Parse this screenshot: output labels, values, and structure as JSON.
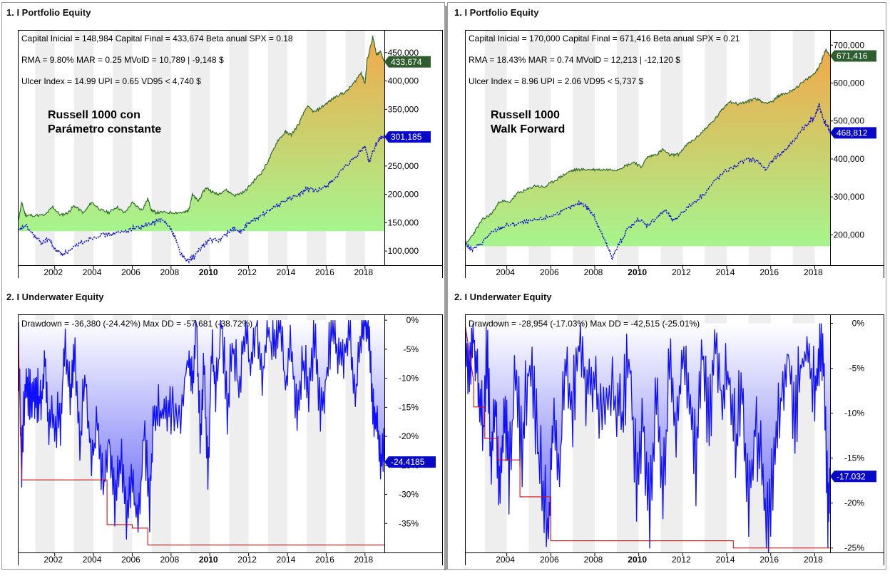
{
  "panels": {
    "left": {
      "equity_title": "1. I Portfolio Equity",
      "underwater_title": "2. I Underwater Equity"
    },
    "right": {
      "equity_title": "1. I Portfolio Equity",
      "underwater_title": "2. I Underwater Equity"
    }
  },
  "colors": {
    "fill_top": "#f2a84a",
    "fill_bottom": "#a6f58e",
    "equity_line": "#2f6b2f",
    "benchmark_line": "#1010d8",
    "drawdown_line": "#1010ff",
    "drawdown_fill_top": "#ffffff",
    "drawdown_fill_bottom": "#5a5af5",
    "maxdd_line": "#d01010",
    "tag_blue": "#0808c8",
    "tag_green": "#2e5e2e"
  },
  "chart_data": [
    {
      "id": "left-equity",
      "type": "area",
      "stats_lines": [
        "Capital Inicial = 148,984  Capital Final = 433,674  Beta anual SPX = 0.18",
        "RMA = 9.80%   MAR = 0.25   MVolD = 10,789 | -9,148 $",
        "Ulcer Index = 14.99   UPI = 0.65   VD95 < 4,740 $"
      ],
      "annotation": [
        "Russell 1000 con",
        "Parámetro constante"
      ],
      "xlim": [
        2000.1,
        2019.0
      ],
      "ylim": [
        75000,
        490000
      ],
      "x_ticks": [
        2002,
        2004,
        2006,
        2008,
        2010,
        2012,
        2014,
        2016,
        2018
      ],
      "x_tick_labels": [
        "2002",
        "2004",
        "2006",
        "2008",
        "2010",
        "2012",
        "2014",
        "2016",
        "2018"
      ],
      "y_ticks": [
        100000,
        150000,
        200000,
        250000,
        300000,
        350000,
        400000,
        450000
      ],
      "y_tick_labels": [
        "100,000",
        "150,000",
        "200,000",
        "250,000",
        "300,000",
        "350,000",
        "400,000",
        "450,000"
      ],
      "fill_floor": 135000,
      "series": [
        {
          "name": "Equity",
          "x": [
            2000.1,
            2000.3,
            2000.5,
            2000.8,
            2001.5,
            2001.9,
            2002.3,
            2002.7,
            2003.0,
            2003.5,
            2003.9,
            2004.4,
            2004.8,
            2005.2,
            2005.6,
            2006.0,
            2006.5,
            2006.8,
            2007.0,
            2007.2,
            2007.6,
            2008.2,
            2008.7,
            2008.9,
            2009.1,
            2009.4,
            2009.8,
            2010.1,
            2010.4,
            2010.8,
            2011.3,
            2011.8,
            2012.3,
            2012.7,
            2013.1,
            2013.5,
            2013.9,
            2014.2,
            2014.6,
            2015.0,
            2015.4,
            2015.8,
            2016.2,
            2016.6,
            2017.0,
            2017.4,
            2017.8,
            2018.0,
            2018.1,
            2018.4,
            2018.6,
            2018.8,
            2019.0
          ],
          "y": [
            150000,
            185000,
            163000,
            163000,
            163000,
            178000,
            163000,
            168000,
            180000,
            167000,
            186000,
            172000,
            168000,
            178000,
            167000,
            185000,
            172000,
            192000,
            172000,
            168000,
            168000,
            168000,
            168000,
            172000,
            199000,
            188000,
            212000,
            205000,
            200000,
            208000,
            198000,
            205000,
            225000,
            240000,
            265000,
            295000,
            310000,
            305000,
            325000,
            355000,
            345000,
            355000,
            365000,
            375000,
            380000,
            395000,
            415000,
            395000,
            435000,
            478000,
            445000,
            452000,
            434000
          ]
        },
        {
          "name": "Benchmark",
          "x": [
            2000.1,
            2000.5,
            2000.9,
            2001.3,
            2001.7,
            2002.0,
            2002.4,
            2002.8,
            2003.2,
            2003.8,
            2004.3,
            2004.9,
            2005.5,
            2006.0,
            2006.5,
            2007.0,
            2007.4,
            2007.8,
            2008.2,
            2008.5,
            2008.8,
            2009.2,
            2009.6,
            2010.0,
            2010.4,
            2010.8,
            2011.2,
            2011.6,
            2012.0,
            2012.5,
            2013.0,
            2013.5,
            2014.0,
            2014.5,
            2015.0,
            2015.5,
            2016.0,
            2016.5,
            2017.0,
            2017.5,
            2018.0,
            2018.2,
            2018.5,
            2018.8,
            2019.0
          ],
          "y": [
            135000,
            145000,
            128000,
            115000,
            122000,
            103000,
            95000,
            100000,
            112000,
            122000,
            128000,
            130000,
            133000,
            140000,
            143000,
            148000,
            155000,
            150000,
            125000,
            95000,
            82000,
            90000,
            108000,
            120000,
            118000,
            128000,
            140000,
            132000,
            150000,
            158000,
            172000,
            180000,
            192000,
            197000,
            210000,
            205000,
            215000,
            230000,
            248000,
            265000,
            285000,
            258000,
            282000,
            300000,
            301000
          ]
        },
        {
          "name": "Drawdown",
          "x": [],
          "y": []
        }
      ],
      "last_values": {
        "equity_tag": "433,674",
        "benchmark_tag": "301,185"
      },
      "last_values_num": {
        "equity": 433674,
        "benchmark": 301185
      }
    },
    {
      "id": "right-equity",
      "type": "area",
      "stats_lines": [
        "Capital Inicial = 170,000  Capital Final = 671,416  Beta anual SPX = 0.21",
        "RMA = 18.43%   MAR = 0.74   MVolD = 12,213 | -12,120 $",
        "Ulcer Index = 8.96   UPI = 2.06   VD95 < 5,737 $"
      ],
      "annotation": [
        "Russell 1000",
        "Walk Forward"
      ],
      "xlim": [
        2002.1,
        2018.7
      ],
      "ylim": [
        120000,
        740000
      ],
      "x_ticks": [
        2004,
        2006,
        2008,
        2010,
        2012,
        2014,
        2016,
        2018
      ],
      "x_tick_labels": [
        "2004",
        "2006",
        "2008",
        "2010",
        "2012",
        "2014",
        "2016",
        "2018"
      ],
      "y_ticks": [
        200000,
        300000,
        400000,
        500000,
        600000,
        700000
      ],
      "y_tick_labels": [
        "200,000",
        "300,000",
        "400,000",
        "500,000",
        "600,000",
        "700,000"
      ],
      "fill_floor": 170000,
      "series": [
        {
          "name": "Equity",
          "x": [
            2002.1,
            2002.5,
            2002.9,
            2003.3,
            2003.7,
            2004.1,
            2004.5,
            2004.9,
            2005.3,
            2005.7,
            2006.1,
            2006.5,
            2006.9,
            2007.2,
            2007.6,
            2008.0,
            2008.5,
            2009.0,
            2009.4,
            2009.8,
            2010.1,
            2010.4,
            2010.8,
            2011.1,
            2011.4,
            2011.8,
            2012.2,
            2012.6,
            2013.0,
            2013.4,
            2013.8,
            2014.1,
            2014.5,
            2014.9,
            2015.3,
            2015.7,
            2016.1,
            2016.4,
            2016.8,
            2017.2,
            2017.6,
            2018.0,
            2018.3,
            2018.5,
            2018.7
          ],
          "y": [
            170000,
            205000,
            240000,
            255000,
            290000,
            285000,
            310000,
            318000,
            330000,
            325000,
            340000,
            355000,
            368000,
            372000,
            372000,
            372000,
            372000,
            372000,
            382000,
            392000,
            378000,
            405000,
            412000,
            425000,
            410000,
            412000,
            438000,
            455000,
            478000,
            500000,
            530000,
            552000,
            545000,
            550000,
            560000,
            548000,
            552000,
            568000,
            575000,
            590000,
            608000,
            625000,
            655000,
            690000,
            671000
          ]
        },
        {
          "name": "Benchmark",
          "x": [
            2002.1,
            2002.4,
            2002.8,
            2003.2,
            2003.6,
            2004.0,
            2004.5,
            2005.0,
            2005.5,
            2006.0,
            2006.5,
            2007.0,
            2007.4,
            2007.7,
            2008.0,
            2008.3,
            2008.6,
            2008.8,
            2009.1,
            2009.5,
            2010.0,
            2010.4,
            2010.8,
            2011.2,
            2011.6,
            2012.0,
            2012.5,
            2013.0,
            2013.5,
            2014.0,
            2014.5,
            2015.0,
            2015.4,
            2015.8,
            2016.2,
            2016.6,
            2017.0,
            2017.4,
            2017.8,
            2018.0,
            2018.2,
            2018.4,
            2018.6,
            2018.7
          ],
          "y": [
            180000,
            160000,
            175000,
            200000,
            215000,
            225000,
            230000,
            235000,
            240000,
            250000,
            260000,
            275000,
            285000,
            270000,
            245000,
            205000,
            165000,
            140000,
            175000,
            215000,
            240000,
            225000,
            245000,
            265000,
            235000,
            262000,
            285000,
            310000,
            345000,
            370000,
            385000,
            400000,
            395000,
            370000,
            405000,
            420000,
            445000,
            475000,
            500000,
            510000,
            545000,
            500000,
            485000,
            469000
          ]
        },
        {
          "name": "Drawdown",
          "x": [],
          "y": []
        }
      ],
      "last_values": {
        "equity_tag": "671,416",
        "benchmark_tag": "468,812"
      },
      "last_values_num": {
        "equity": 671416,
        "benchmark": 468812
      }
    },
    {
      "id": "left-underwater",
      "type": "area",
      "stats_line": "Drawdown = -36,380 (-24.42%)     Max DD = -57,681 (-38.72%)",
      "xlim": [
        2000.1,
        2019.0
      ],
      "ylim": [
        -40,
        1
      ],
      "x_ticks": [
        2002,
        2004,
        2006,
        2008,
        2010,
        2012,
        2014,
        2016,
        2018
      ],
      "x_tick_labels": [
        "2002",
        "2004",
        "2006",
        "2008",
        "2010",
        "2012",
        "2014",
        "2016",
        "2018"
      ],
      "y_ticks": [
        0,
        -5,
        -10,
        -15,
        -20,
        -25,
        -30,
        -35
      ],
      "y_tick_labels": [
        "0%",
        "-5%",
        "-10%",
        "-15%",
        "-20%",
        "-25%",
        "-30%",
        "-35%"
      ],
      "series": [
        {
          "name": "Drawdown",
          "x": [
            2000.1,
            2000.3,
            2000.5,
            2000.7,
            2000.9,
            2001.1,
            2001.3,
            2001.5,
            2001.7,
            2002.0,
            2002.3,
            2002.5,
            2002.8,
            2003.0,
            2003.3,
            2003.6,
            2003.9,
            2004.2,
            2004.5,
            2004.8,
            2005.1,
            2005.4,
            2005.7,
            2006.0,
            2006.3,
            2006.6,
            2006.9,
            2007.1,
            2007.4,
            2007.7,
            2008.0,
            2008.5,
            2008.9,
            2009.1,
            2009.3,
            2009.5,
            2009.7,
            2009.9,
            2010.1,
            2010.3,
            2010.6,
            2010.9,
            2011.2,
            2011.5,
            2011.8,
            2012.1,
            2012.4,
            2012.7,
            2013.0,
            2013.3,
            2013.6,
            2013.9,
            2014.2,
            2014.5,
            2014.8,
            2015.1,
            2015.4,
            2015.7,
            2016.0,
            2016.3,
            2016.6,
            2016.9,
            2017.2,
            2017.5,
            2017.8,
            2018.0,
            2018.2,
            2018.4,
            2018.6,
            2018.8,
            2019.0
          ],
          "y": [
            0,
            -25,
            -10,
            -14,
            -14,
            -14,
            -14,
            -8,
            -18,
            -18,
            -18,
            -5,
            -14,
            -6,
            -22,
            -10,
            -25,
            -18,
            -30,
            -20,
            -32,
            -24,
            -35,
            -28,
            -36,
            -20,
            -33,
            -16,
            -16,
            -16,
            -16,
            -16,
            -6,
            -12,
            0,
            -20,
            -8,
            -28,
            -4,
            -14,
            0,
            -16,
            -4,
            -12,
            -2,
            -8,
            0,
            -10,
            -2,
            -6,
            0,
            -12,
            -4,
            -18,
            -6,
            -14,
            -3,
            -18,
            -10,
            -2,
            -6,
            -8,
            0,
            -14,
            -2,
            0,
            -3,
            -17,
            -17,
            -24,
            -24.4
          ]
        },
        {
          "name": "Max DD",
          "x": [
            2000.1,
            2000.3,
            2004.7,
            2004.7,
            2006.0,
            2006.0,
            2006.8,
            2006.8,
            2019.0
          ],
          "y": [
            0,
            -27.5,
            -27.5,
            -35.2,
            -35.2,
            -35.8,
            -35.8,
            -38.7,
            -38.7
          ]
        }
      ],
      "last_value_tag": "-24.4185",
      "last_value_num": -24.4185
    },
    {
      "id": "right-underwater",
      "type": "area",
      "stats_line": "Drawdown = -28,954 (-17.03%)     Max DD = -42,515 (-25.01%)",
      "xlim": [
        2002.1,
        2018.7
      ],
      "ylim": [
        -25.5,
        1
      ],
      "x_ticks": [
        2004,
        2006,
        2008,
        2010,
        2012,
        2014,
        2016,
        2018
      ],
      "x_tick_labels": [
        "2004",
        "2006",
        "2008",
        "2010",
        "2012",
        "2014",
        "2016",
        "2018"
      ],
      "y_ticks": [
        0,
        -5,
        -10,
        -15,
        -20,
        -25
      ],
      "y_tick_labels": [
        "0%",
        "-5%",
        "-10%",
        "-15%",
        "-20%",
        "-25%"
      ],
      "series": [
        {
          "name": "Drawdown",
          "x": [
            2002.1,
            2002.3,
            2002.5,
            2002.7,
            2002.9,
            2003.1,
            2003.3,
            2003.5,
            2003.7,
            2003.9,
            2004.1,
            2004.4,
            2004.7,
            2005.0,
            2005.3,
            2005.6,
            2005.9,
            2006.1,
            2006.4,
            2006.7,
            2007.0,
            2007.3,
            2007.6,
            2007.9,
            2008.2,
            2008.6,
            2009.0,
            2009.3,
            2009.6,
            2009.9,
            2010.2,
            2010.5,
            2010.8,
            2011.1,
            2011.4,
            2011.7,
            2012.0,
            2012.3,
            2012.6,
            2012.9,
            2013.2,
            2013.5,
            2013.8,
            2014.1,
            2014.4,
            2014.7,
            2015.0,
            2015.3,
            2015.6,
            2015.9,
            2016.2,
            2016.5,
            2016.8,
            2017.1,
            2017.4,
            2017.7,
            2018.0,
            2018.2,
            2018.4,
            2018.6,
            2018.7
          ],
          "y": [
            0,
            -6,
            -2,
            -7,
            -13,
            -5,
            -15,
            -10,
            -20,
            -9,
            -18,
            -6,
            -15,
            -4,
            -12,
            -18,
            -24,
            -10,
            -16,
            -4,
            -10,
            -2,
            -8,
            -6,
            -9,
            -9,
            -9,
            -10,
            -4,
            -19,
            -12,
            -23,
            -8,
            -20,
            -4,
            -14,
            -2,
            -8,
            -17,
            -4,
            -12,
            -2,
            -10,
            -6,
            -14,
            -8,
            -20,
            -12,
            -17,
            -24,
            -14,
            -8,
            -3,
            -12,
            -5,
            -2,
            -8,
            -4,
            -2,
            -22,
            -17
          ]
        },
        {
          "name": "Max DD",
          "x": [
            2002.1,
            2002.5,
            2002.5,
            2003.0,
            2003.0,
            2003.6,
            2003.6,
            2004.6,
            2004.6,
            2006.0,
            2006.0,
            2014.3,
            2014.3,
            2018.7
          ],
          "y": [
            0,
            -6.5,
            -9.3,
            -9.3,
            -12.8,
            -12.8,
            -15.2,
            -15.2,
            -19.3,
            -19.3,
            -24.2,
            -24.2,
            -25.0,
            -25.0
          ]
        }
      ],
      "last_value_tag": "-17.032",
      "last_value_num": -17.032
    }
  ]
}
